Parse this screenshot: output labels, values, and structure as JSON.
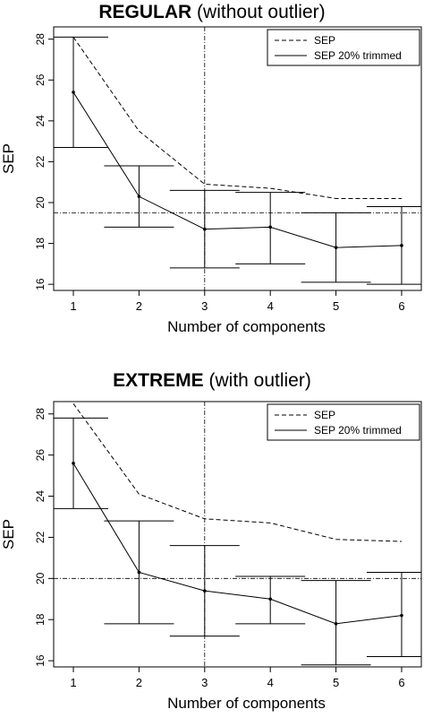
{
  "chart_data": [
    {
      "type": "line",
      "title_bold": "REGULAR",
      "title_rest": " (without outlier)",
      "xlabel": "Number of components",
      "ylabel": "SEP",
      "x": [
        1,
        2,
        3,
        4,
        5,
        6
      ],
      "xlim": [
        0.7,
        6.3
      ],
      "ylim": [
        15.7,
        28.6
      ],
      "yticks": [
        16,
        18,
        20,
        22,
        24,
        26,
        28
      ],
      "grid": false,
      "legend_position": "top-right",
      "series": [
        {
          "name": "SEP",
          "style": "dashed",
          "values": [
            28.1,
            23.5,
            20.9,
            20.7,
            20.2,
            20.2
          ]
        },
        {
          "name": "SEP 20% trimmed",
          "style": "solid",
          "values": [
            25.4,
            20.3,
            18.7,
            18.8,
            17.8,
            17.9
          ]
        }
      ],
      "error_bars": {
        "low": [
          22.7,
          18.8,
          16.8,
          17.0,
          16.1,
          16.0
        ],
        "high": [
          28.1,
          21.8,
          20.6,
          20.5,
          19.5,
          19.8
        ]
      },
      "hline": 19.5,
      "vline": 3
    },
    {
      "type": "line",
      "title_bold": "EXTREME",
      "title_rest": " (with outlier)",
      "xlabel": "Number of components",
      "ylabel": "SEP",
      "x": [
        1,
        2,
        3,
        4,
        5,
        6
      ],
      "xlim": [
        0.7,
        6.3
      ],
      "ylim": [
        15.7,
        28.6
      ],
      "yticks": [
        16,
        18,
        20,
        22,
        24,
        26,
        28
      ],
      "grid": false,
      "legend_position": "top-right",
      "series": [
        {
          "name": "SEP",
          "style": "dashed",
          "values": [
            28.5,
            24.1,
            22.9,
            22.7,
            21.9,
            21.8
          ]
        },
        {
          "name": "SEP 20% trimmed",
          "style": "solid",
          "values": [
            25.6,
            20.3,
            19.4,
            19.0,
            17.8,
            18.2
          ]
        }
      ],
      "error_bars": {
        "low": [
          23.4,
          17.8,
          17.2,
          17.8,
          15.8,
          16.2
        ],
        "high": [
          27.8,
          22.8,
          21.6,
          20.1,
          19.9,
          20.3
        ]
      },
      "hline": 20.0,
      "vline": 3
    }
  ]
}
